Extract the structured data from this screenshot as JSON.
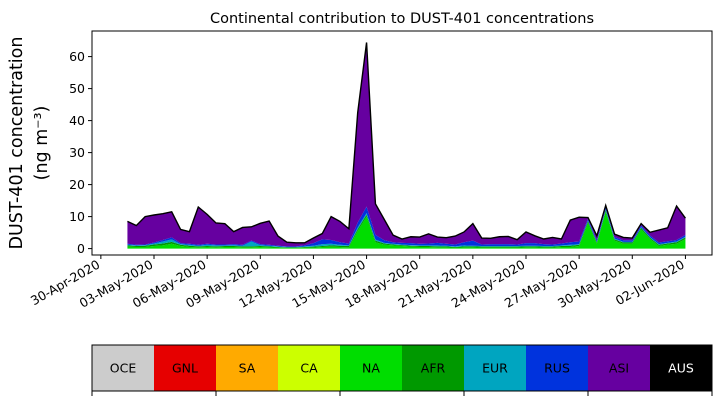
{
  "chart_data": {
    "type": "area",
    "stacked": true,
    "title": "Continental contribution to DUST-401 concentrations",
    "ylabel_line1": "DUST-401 concentration",
    "ylabel_line2": "(ng m⁻³)",
    "xlabel": "",
    "ylim": [
      -2,
      68
    ],
    "yticks": [
      0,
      10,
      20,
      30,
      40,
      50,
      60
    ],
    "xlim": [
      "2020-04-29T12:00",
      "2020-06-03T12:00"
    ],
    "xticks": [
      "2020-04-30",
      "2020-05-03",
      "2020-05-06",
      "2020-05-09",
      "2020-05-12",
      "2020-05-15",
      "2020-05-18",
      "2020-05-21",
      "2020-05-24",
      "2020-05-27",
      "2020-05-30",
      "2020-06-02"
    ],
    "xtick_labels": [
      "30-Apr-2020",
      "03-May-2020",
      "06-May-2020",
      "09-May-2020",
      "12-May-2020",
      "15-May-2020",
      "18-May-2020",
      "21-May-2020",
      "24-May-2020",
      "27-May-2020",
      "30-May-2020",
      "02-Jun-2020"
    ],
    "grid": false,
    "legend": "colorbar-below",
    "x": [
      "2020-05-01T12:00",
      "2020-05-02",
      "2020-05-02T12:00",
      "2020-05-03",
      "2020-05-03T12:00",
      "2020-05-04",
      "2020-05-04T12:00",
      "2020-05-05",
      "2020-05-05T12:00",
      "2020-05-06",
      "2020-05-06T12:00",
      "2020-05-07",
      "2020-05-07T12:00",
      "2020-05-08",
      "2020-05-08T12:00",
      "2020-05-09",
      "2020-05-09T12:00",
      "2020-05-10",
      "2020-05-10T12:00",
      "2020-05-11",
      "2020-05-11T12:00",
      "2020-05-12",
      "2020-05-12T12:00",
      "2020-05-13",
      "2020-05-13T12:00",
      "2020-05-14",
      "2020-05-14T12:00",
      "2020-05-15",
      "2020-05-15T12:00",
      "2020-05-16",
      "2020-05-16T12:00",
      "2020-05-17",
      "2020-05-17T12:00",
      "2020-05-18",
      "2020-05-18T12:00",
      "2020-05-19",
      "2020-05-19T12:00",
      "2020-05-20",
      "2020-05-20T12:00",
      "2020-05-21",
      "2020-05-21T12:00",
      "2020-05-22",
      "2020-05-22T12:00",
      "2020-05-23",
      "2020-05-23T12:00",
      "2020-05-24",
      "2020-05-24T12:00",
      "2020-05-25",
      "2020-05-25T12:00",
      "2020-05-26",
      "2020-05-26T12:00",
      "2020-05-27",
      "2020-05-27T12:00",
      "2020-05-28",
      "2020-05-28T12:00",
      "2020-05-29",
      "2020-05-29T12:00",
      "2020-05-30",
      "2020-05-30T12:00",
      "2020-05-31",
      "2020-05-31T12:00",
      "2020-06-01",
      "2020-06-01T12:00",
      "2020-06-02"
    ],
    "series": [
      {
        "name": "OCE",
        "color": "#cccccc",
        "values": [
          0,
          0,
          0,
          0,
          0,
          0,
          0,
          0,
          0,
          0,
          0,
          0,
          0,
          0,
          0,
          0,
          0,
          0,
          0,
          0,
          0,
          0,
          0,
          0,
          0,
          0,
          0,
          0,
          0,
          0,
          0,
          0,
          0,
          0,
          0,
          0,
          0,
          0,
          0,
          0,
          0,
          0,
          0,
          0,
          0,
          0,
          0,
          0,
          0,
          0,
          0,
          0,
          0,
          0,
          0,
          0,
          0,
          0,
          0,
          0,
          0,
          0,
          0,
          0
        ]
      },
      {
        "name": "GNL",
        "color": "#e60000",
        "values": [
          0,
          0,
          0,
          0,
          0,
          0,
          0,
          0,
          0,
          0,
          0,
          0,
          0,
          0,
          0,
          0,
          0,
          0,
          0,
          0,
          0,
          0,
          0,
          0,
          0,
          0,
          0,
          0,
          0,
          0,
          0,
          0,
          0,
          0,
          0,
          0,
          0,
          0,
          0,
          0,
          0,
          0,
          0,
          0,
          0,
          0,
          0,
          0,
          0,
          0,
          0,
          0,
          0,
          0,
          0,
          0,
          0,
          0,
          0,
          0,
          0,
          0,
          0,
          0
        ]
      },
      {
        "name": "SA",
        "color": "#ffaa00",
        "values": [
          0,
          0,
          0,
          0,
          0,
          0,
          0,
          0,
          0,
          0,
          0,
          0,
          0,
          0,
          0,
          0,
          0,
          0,
          0,
          0,
          0,
          0,
          0,
          0,
          0,
          0,
          0,
          0,
          0,
          0,
          0,
          0,
          0,
          0,
          0,
          0,
          0,
          0,
          0,
          0,
          0,
          0,
          0,
          0,
          0,
          0,
          0,
          0,
          0,
          0,
          0,
          0,
          0,
          0,
          0,
          0,
          0,
          0,
          0,
          0,
          0,
          0,
          0,
          0
        ]
      },
      {
        "name": "CA",
        "color": "#ccff00",
        "values": [
          0,
          0,
          0,
          0,
          0,
          0,
          0,
          0,
          0,
          0,
          0,
          0,
          0,
          0,
          0,
          0,
          0,
          0,
          0,
          0,
          0,
          0,
          0,
          0,
          0,
          0,
          0,
          0,
          0,
          0,
          0,
          0,
          0,
          0,
          0,
          0,
          0,
          0,
          0,
          0,
          0,
          0,
          0,
          0,
          0,
          0,
          0,
          0,
          0,
          0,
          0,
          0,
          0,
          0,
          0,
          0,
          0,
          0,
          0,
          0,
          0,
          0,
          0,
          0
        ]
      },
      {
        "name": "NA",
        "color": "#00dd00",
        "values": [
          0.6,
          0.5,
          0.5,
          0.8,
          1.0,
          1.5,
          0.8,
          0.5,
          0.4,
          0.5,
          0.4,
          0.5,
          0.5,
          0.4,
          0.4,
          0.5,
          0.4,
          0.3,
          0.2,
          0.2,
          0.3,
          0.3,
          0.5,
          0.6,
          0.5,
          0.4,
          5.5,
          10.0,
          2.0,
          1.2,
          1.0,
          0.8,
          0.6,
          0.5,
          0.5,
          0.4,
          0.4,
          0.3,
          0.4,
          0.4,
          0.3,
          0.3,
          0.3,
          0.3,
          0.3,
          0.4,
          0.4,
          0.3,
          0.3,
          0.5,
          0.5,
          0.8,
          8.0,
          1.5,
          11.5,
          2.5,
          1.5,
          1.5,
          6.0,
          3.0,
          0.8,
          1.2,
          1.5,
          3.0
        ]
      },
      {
        "name": "AFR",
        "color": "#009900",
        "values": [
          0.4,
          0.3,
          0.4,
          0.5,
          0.6,
          0.6,
          0.4,
          0.4,
          0.3,
          0.3,
          0.3,
          0.3,
          0.3,
          0.3,
          0.3,
          0.3,
          0.3,
          0.2,
          0.2,
          0.2,
          0.2,
          0.3,
          0.3,
          0.4,
          0.4,
          0.4,
          0.6,
          0.6,
          0.5,
          0.4,
          0.3,
          0.3,
          0.3,
          0.3,
          0.3,
          0.3,
          0.3,
          0.2,
          0.3,
          0.3,
          0.3,
          0.3,
          0.3,
          0.3,
          0.3,
          0.3,
          0.3,
          0.3,
          0.3,
          0.3,
          0.4,
          0.4,
          0.6,
          0.4,
          0.5,
          0.4,
          0.4,
          0.4,
          0.5,
          0.4,
          0.4,
          0.4,
          0.5,
          0.5
        ]
      },
      {
        "name": "EUR",
        "color": "#00a5c0",
        "values": [
          0.2,
          0.2,
          0.2,
          0.3,
          0.6,
          0.8,
          0.2,
          0.3,
          0.2,
          0.4,
          0.3,
          0.2,
          0.3,
          0.2,
          1.5,
          0.3,
          0.2,
          0.2,
          0.1,
          0.1,
          0.2,
          0.3,
          0.6,
          0.5,
          0.3,
          0.2,
          0.5,
          0.5,
          0.3,
          0.2,
          0.2,
          0.2,
          0.2,
          0.2,
          0.2,
          0.3,
          0.2,
          0.2,
          0.3,
          0.2,
          0.2,
          0.2,
          0.2,
          0.2,
          0.2,
          0.2,
          0.2,
          0.2,
          0.2,
          0.2,
          0.3,
          0.2,
          0.2,
          0.2,
          0.3,
          0.2,
          0.2,
          0.2,
          0.2,
          0.2,
          0.2,
          0.2,
          0.2,
          0.2
        ]
      },
      {
        "name": "RUS",
        "color": "#0033dd",
        "values": [
          0.3,
          0.2,
          0.2,
          0.3,
          0.5,
          0.6,
          0.3,
          0.3,
          0.3,
          0.3,
          0.3,
          0.3,
          0.3,
          0.3,
          0.3,
          0.3,
          0.3,
          0.2,
          0.2,
          0.2,
          0.3,
          0.8,
          1.5,
          1.2,
          0.8,
          0.6,
          1.5,
          2.0,
          1.5,
          0.8,
          0.5,
          0.5,
          0.6,
          0.5,
          0.6,
          0.8,
          0.6,
          0.6,
          1.0,
          1.6,
          0.5,
          0.6,
          0.6,
          0.6,
          0.5,
          0.8,
          0.8,
          0.6,
          0.5,
          0.6,
          0.8,
          0.8,
          0.5,
          0.6,
          0.6,
          0.5,
          0.5,
          0.5,
          0.5,
          0.5,
          0.5,
          0.5,
          0.5,
          0.6
        ]
      },
      {
        "name": "ASI",
        "color": "#6600a0",
        "values": [
          7.0,
          6.0,
          8.7,
          8.6,
          8.2,
          8.0,
          4.3,
          3.8,
          11.8,
          9.2,
          6.7,
          6.5,
          3.9,
          5.4,
          4.3,
          6.5,
          7.4,
          3.0,
          1.3,
          1.1,
          0.8,
          1.6,
          1.8,
          7.3,
          6.5,
          4.6,
          34.4,
          51.3,
          9.7,
          6.5,
          2.2,
          1.2,
          2.0,
          2.1,
          3.0,
          1.8,
          1.9,
          2.6,
          3.2,
          5.3,
          2.0,
          1.8,
          2.3,
          2.4,
          1.5,
          3.5,
          2.3,
          1.6,
          2.2,
          1.4,
          6.9,
          7.6,
          0.4,
          1.3,
          0.6,
          0.9,
          0.9,
          0.7,
          0.6,
          1.0,
          3.9,
          4.2,
          10.6,
          5.2
        ]
      },
      {
        "name": "AUS",
        "color": "#000000",
        "values": [
          0,
          0,
          0,
          0,
          0,
          0,
          0,
          0,
          0,
          0,
          0,
          0,
          0,
          0,
          0,
          0,
          0,
          0,
          0,
          0,
          0,
          0,
          0,
          0,
          0,
          0,
          0,
          0,
          0,
          0,
          0,
          0,
          0,
          0,
          0,
          0,
          0,
          0,
          0,
          0,
          0,
          0,
          0,
          0,
          0,
          0,
          0,
          0,
          0,
          0,
          0,
          0,
          0,
          0,
          0,
          0,
          0,
          0,
          0,
          0,
          0,
          0,
          0,
          0
        ]
      }
    ]
  },
  "colorbar": {
    "labels": [
      "OCE",
      "GNL",
      "SA",
      "CA",
      "NA",
      "AFR",
      "EUR",
      "RUS",
      "ASI",
      "AUS"
    ],
    "colors": [
      "#cccccc",
      "#e60000",
      "#ffaa00",
      "#ccff00",
      "#00dd00",
      "#009900",
      "#00a5c0",
      "#0033dd",
      "#6600a0",
      "#000000"
    ],
    "label_colors": [
      "#000000",
      "#000000",
      "#000000",
      "#000000",
      "#000000",
      "#000000",
      "#000000",
      "#000000",
      "#000000",
      "#ffffff"
    ]
  }
}
